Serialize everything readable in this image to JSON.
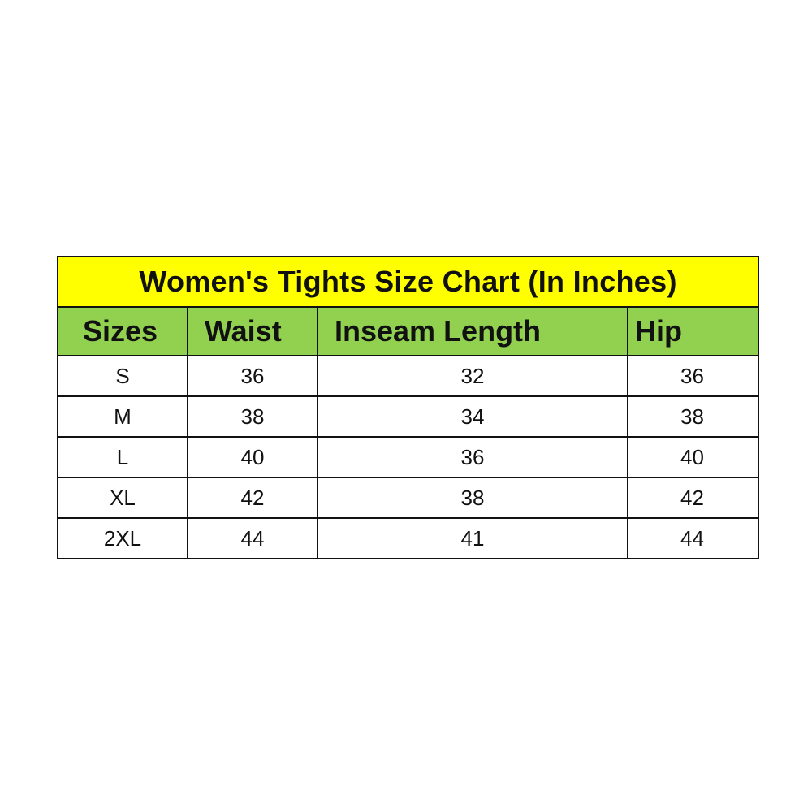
{
  "title": "Women's Tights Size Chart (In Inches)",
  "colors": {
    "title_bg": "#FFFF00",
    "header_bg": "#92D050"
  },
  "headers": [
    "Sizes",
    "Waist",
    "Inseam Length",
    "Hip"
  ],
  "rows": [
    [
      "S",
      "36",
      "32",
      "36"
    ],
    [
      "M",
      "38",
      "34",
      "38"
    ],
    [
      "L",
      "40",
      "36",
      "40"
    ],
    [
      "XL",
      "42",
      "38",
      "42"
    ],
    [
      "2XL",
      "44",
      "41",
      "44"
    ]
  ]
}
